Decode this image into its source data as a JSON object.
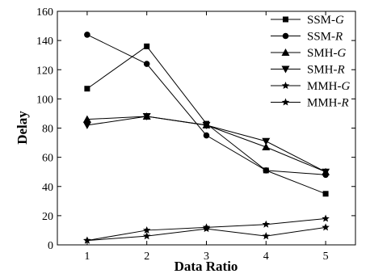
{
  "chart_data": {
    "type": "line",
    "title": "",
    "xlabel": "Data Ratio",
    "ylabel": "Delay",
    "x": [
      1,
      2,
      3,
      4,
      5
    ],
    "xlim": [
      0.5,
      5.5
    ],
    "ylim": [
      0,
      160
    ],
    "xticks": [
      "1",
      "2",
      "3",
      "4",
      "5"
    ],
    "yticks": [
      "0",
      "20",
      "40",
      "60",
      "80",
      "100",
      "120",
      "140",
      "160"
    ],
    "grid": false,
    "legend_position": "top-right",
    "series": [
      {
        "name": "SSM-G",
        "prefix": "SSM-",
        "suffix": "G",
        "marker": "square",
        "values": [
          107,
          136,
          83,
          51,
          35
        ]
      },
      {
        "name": "SSM-R",
        "prefix": "SSM-",
        "suffix": "R",
        "marker": "circle",
        "values": [
          144,
          124,
          75,
          51,
          48
        ]
      },
      {
        "name": "SMH-G",
        "prefix": "SMH-",
        "suffix": "G",
        "marker": "triangle-up",
        "values": [
          86,
          88,
          82,
          67,
          50
        ]
      },
      {
        "name": "SMH-R",
        "prefix": "SMH-",
        "suffix": "R",
        "marker": "triangle-down",
        "values": [
          82,
          88,
          82,
          71,
          50
        ]
      },
      {
        "name": "MMH-G",
        "prefix": "MMH-",
        "suffix": "G",
        "marker": "star",
        "values": [
          3,
          10,
          12,
          14,
          18
        ]
      },
      {
        "name": "MMH-R",
        "prefix": "MMH-",
        "suffix": "R",
        "marker": "star",
        "values": [
          3,
          6,
          11,
          6,
          12
        ]
      }
    ]
  }
}
